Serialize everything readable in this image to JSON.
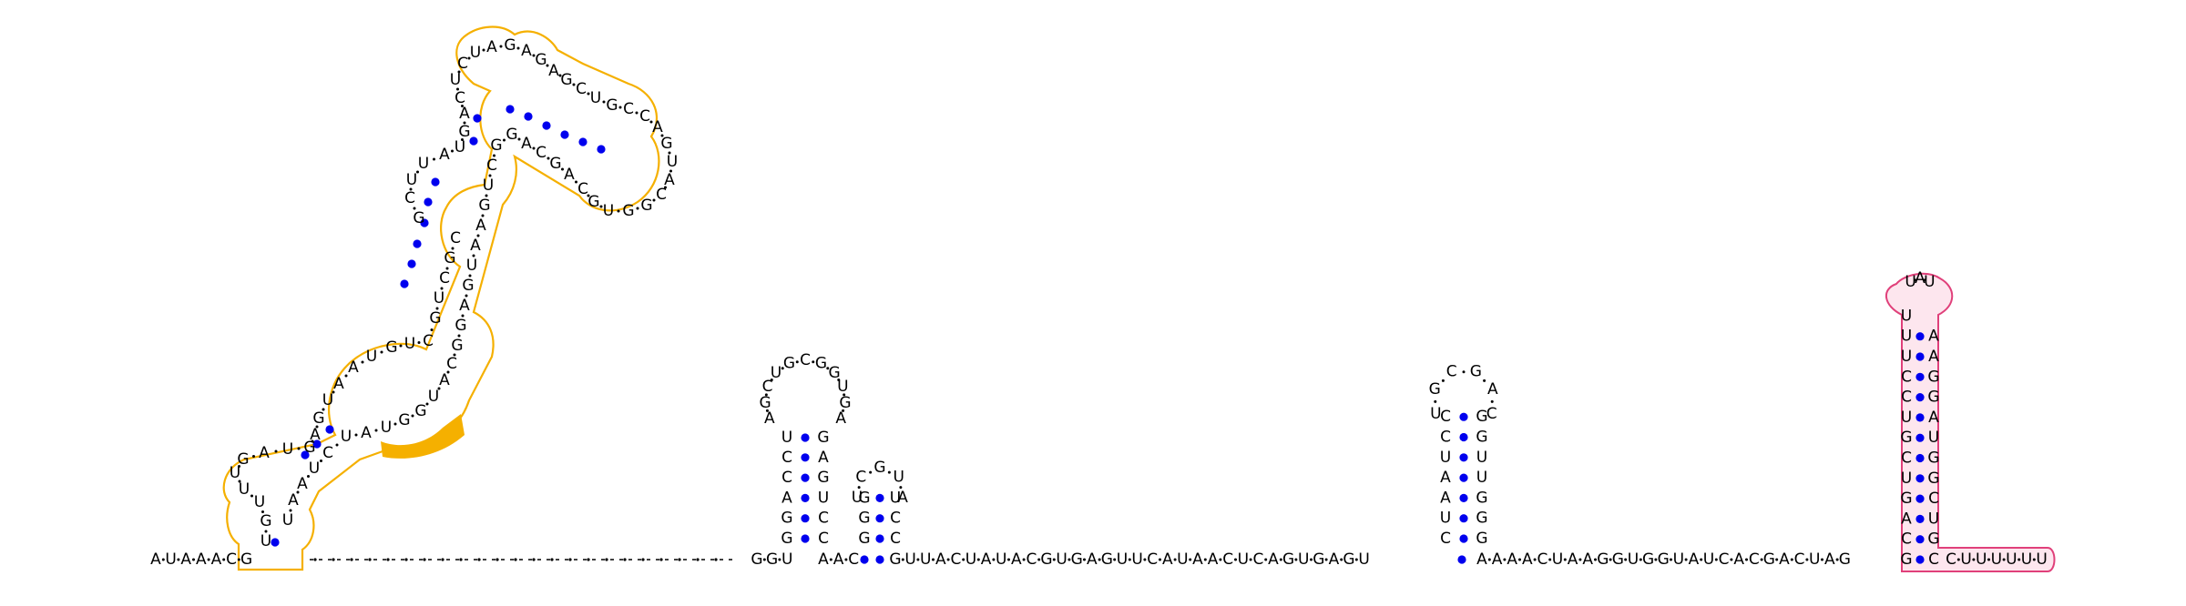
{
  "colors": {
    "background": "#ffffff",
    "pair_dot": "#0000ee",
    "structure_outline_orange": "#f5b000",
    "structure_outline_orange_fill": "#ffffff",
    "highlight_fill": "#f5b000",
    "structure_outline_pink": "#e0407a",
    "structure_fill_pink": "#fde6ee",
    "connector_line": "#000000"
  },
  "strands": {
    "prefix": "AUAAACG",
    "highlight_nucleotides": "GUA",
    "main_after_hairpin2": "GUUACUAUACGUGAGUUCAUAACUCAGUGAGU",
    "main_after_hairpin3": "AAAACUAAGGUGGUAUCACGACUAG",
    "tail_3prime": "CUUUUUU"
  },
  "hairpins": [
    {
      "id": "h1",
      "stem_left": "GGACCG",
      "loop": "AGCUGCGGUGA",
      "stem_right": "GCAGUCC"
    },
    {
      "id": "h2",
      "stem_left": "CGG",
      "loop": "UCGUA",
      "stem_right": "UCC"
    },
    {
      "id": "h3",
      "stem_left": "UCAAUCC",
      "loop": "UGCGAC",
      "stem_right": "GGUUGGG"
    },
    {
      "id": "terminator",
      "stem_left": "GCAGUCGUCCUUU",
      "loop": "UAU",
      "stem_right": "AAGGAUGGCUGC"
    }
  ],
  "structure_letters": {
    "orange_domain_visible_sequence": "UGUUUGAUGAGUAAUGUCGUCGCGCUUAUGACUCUAGAGAGCUGCCAGUACGGUGCAGCAGGCUGAAUGAGGCAUGGUAUCUAAU"
  }
}
